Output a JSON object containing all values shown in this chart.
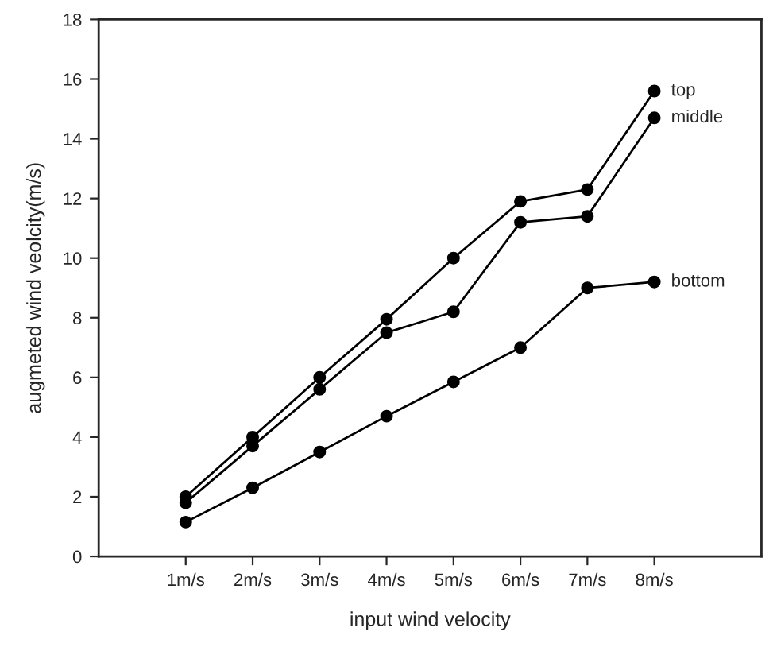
{
  "chart_data": {
    "type": "line",
    "xlabel": "input wind velocity",
    "ylabel": "augmeted wind veolcity(m/s)",
    "categories": [
      "1m/s",
      "2m/s",
      "3m/s",
      "4m/s",
      "5m/s",
      "6m/s",
      "7m/s",
      "8m/s"
    ],
    "series": [
      {
        "name": "top",
        "color": "#000000",
        "values": [
          2.0,
          4.0,
          6.0,
          7.95,
          10.0,
          11.9,
          12.3,
          15.6
        ]
      },
      {
        "name": "middle",
        "color": "#000000",
        "values": [
          1.8,
          3.7,
          5.6,
          7.5,
          8.2,
          11.2,
          11.4,
          14.7
        ]
      },
      {
        "name": "bottom",
        "color": "#000000",
        "values": [
          1.15,
          2.3,
          3.5,
          4.7,
          5.85,
          7.0,
          9.0,
          9.2
        ]
      }
    ],
    "ylim": [
      0,
      18
    ],
    "yticks": [
      0,
      2,
      4,
      6,
      8,
      10,
      12,
      14,
      16,
      18
    ],
    "marker": "circle",
    "line_style": "solid",
    "grid": false,
    "legend": false
  }
}
